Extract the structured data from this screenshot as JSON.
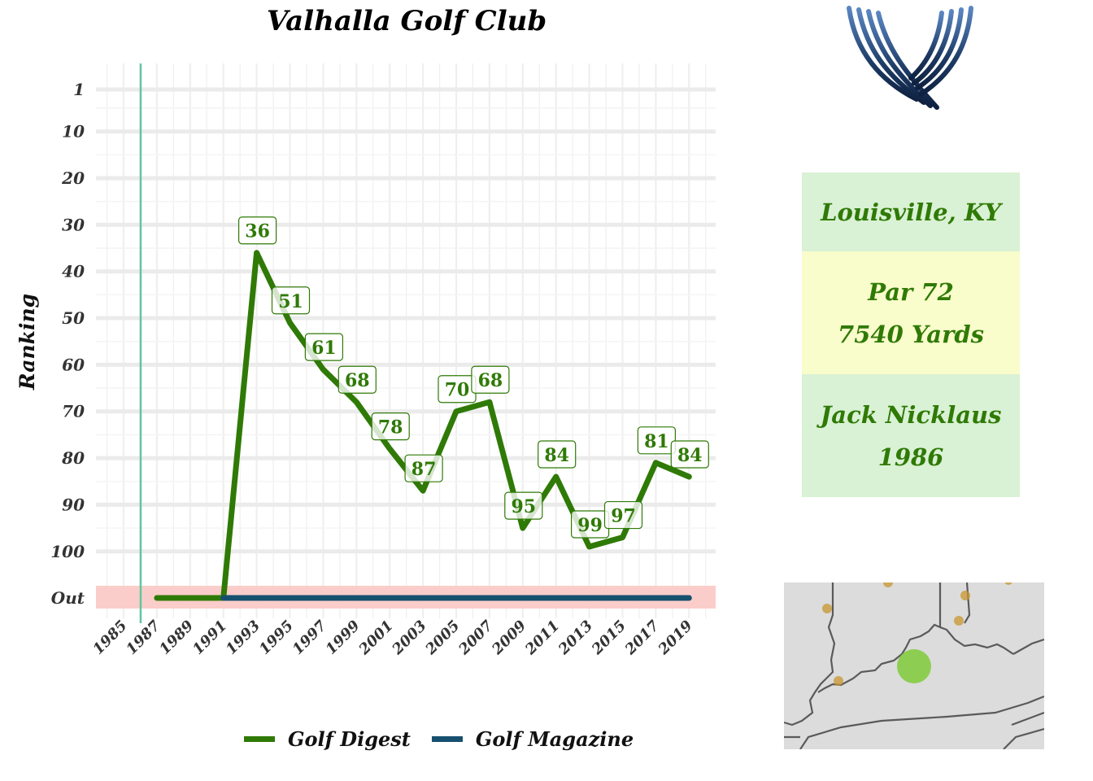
{
  "title": "Valhalla Golf Club",
  "info": {
    "location": "Louisville, KY",
    "par": "Par 72",
    "yards": "7540 Yards",
    "architect": "Jack Nicklaus",
    "year_built": "1986"
  },
  "colors": {
    "golf_digest": "#2f7a06",
    "golf_magazine": "#17506e",
    "out_band": "#fbcdca",
    "year_built_line": "#5ec7a0",
    "grid": "#ebebeb"
  },
  "chart_data": {
    "type": "line",
    "title": "Valhalla Golf Club",
    "xlabel": "",
    "ylabel": "Ranking",
    "x_ticks": [
      1985,
      1987,
      1989,
      1991,
      1993,
      1995,
      1997,
      1999,
      2001,
      2003,
      2005,
      2007,
      2009,
      2011,
      2013,
      2015,
      2017,
      2019
    ],
    "y_ticks": [
      "1",
      "10",
      "20",
      "30",
      "40",
      "50",
      "60",
      "70",
      "80",
      "90",
      "100",
      "Out"
    ],
    "y_reversed": true,
    "xlim": [
      1984,
      2020
    ],
    "ylim": [
      1,
      101
    ],
    "vertical_line_year": 1986,
    "grid": true,
    "legend_position": "bottom",
    "series": [
      {
        "name": "Golf Digest",
        "color": "#2f7a06",
        "points": [
          {
            "x": 1987,
            "y": "Out"
          },
          {
            "x": 1991,
            "y": "Out"
          },
          {
            "x": 1993,
            "y": 36
          },
          {
            "x": 1995,
            "y": 51
          },
          {
            "x": 1997,
            "y": 61
          },
          {
            "x": 1999,
            "y": 68
          },
          {
            "x": 2001,
            "y": 78
          },
          {
            "x": 2003,
            "y": 87
          },
          {
            "x": 2005,
            "y": 70
          },
          {
            "x": 2007,
            "y": 68
          },
          {
            "x": 2009,
            "y": 95
          },
          {
            "x": 2011,
            "y": 84
          },
          {
            "x": 2013,
            "y": 99
          },
          {
            "x": 2015,
            "y": 97
          },
          {
            "x": 2017,
            "y": 81
          },
          {
            "x": 2019,
            "y": 84
          }
        ]
      },
      {
        "name": "Golf Magazine",
        "color": "#17506e",
        "points": [
          {
            "x": 1991,
            "y": "Out"
          },
          {
            "x": 2019,
            "y": "Out"
          }
        ]
      }
    ]
  },
  "map": {
    "description": "",
    "highlight_color": "#7fcb3a"
  }
}
